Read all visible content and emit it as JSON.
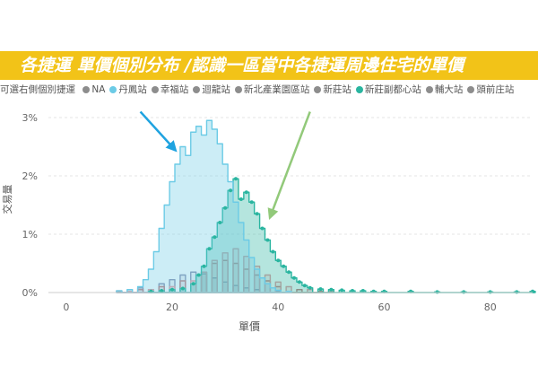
{
  "banner": {
    "title": "各捷運 單價個別分布 /認識一區當中各捷運周邊住宅的單價"
  },
  "legend": {
    "label": "可選右側個別捷運",
    "items": [
      {
        "name": "NA",
        "color": "#8d8d8d"
      },
      {
        "name": "丹鳳站",
        "color": "#6ccbe6"
      },
      {
        "name": "幸福站",
        "color": "#8d8d8d"
      },
      {
        "name": "迴龍站",
        "color": "#8d8d8d"
      },
      {
        "name": "新北產業園區站",
        "color": "#8d8d8d"
      },
      {
        "name": "新莊站",
        "color": "#8d8d8d"
      },
      {
        "name": "新莊副都心站",
        "color": "#2ab5a0"
      },
      {
        "name": "輔大站",
        "color": "#8d8d8d"
      },
      {
        "name": "頭前庄站",
        "color": "#8d8d8d"
      }
    ]
  },
  "chart_data": {
    "type": "area",
    "xlabel": "單價",
    "ylabel": "交易量",
    "xlim": [
      -2,
      88
    ],
    "ylim": [
      0,
      3.2
    ],
    "xticks": [
      0,
      20,
      40,
      60,
      80
    ],
    "yticks": [
      0,
      1,
      2,
      3
    ],
    "ytick_labels": [
      "0%",
      "1%",
      "2%",
      "3%"
    ],
    "grid": true,
    "series": [
      {
        "name": "丹鳳站",
        "color": "#6ccbe6",
        "fill_opacity": 0.35,
        "x": [
          10,
          12,
          14,
          15,
          16,
          17,
          18,
          19,
          20,
          21,
          22,
          23,
          24,
          25,
          26,
          27,
          28,
          29,
          30,
          31,
          32,
          33,
          34,
          35,
          36,
          37,
          38,
          39,
          40,
          42
        ],
        "y": [
          0.03,
          0.05,
          0.1,
          0.22,
          0.4,
          0.7,
          1.1,
          1.5,
          1.9,
          2.2,
          2.5,
          2.35,
          2.75,
          2.85,
          2.7,
          2.95,
          2.8,
          2.55,
          2.2,
          1.9,
          1.55,
          1.2,
          0.9,
          0.6,
          0.4,
          0.25,
          0.15,
          0.08,
          0.04,
          0.02
        ]
      },
      {
        "name": "新莊副都心站",
        "color": "#2ab5a0",
        "fill_opacity": 0.35,
        "x": [
          16,
          18,
          20,
          22,
          24,
          25,
          26,
          27,
          28,
          29,
          30,
          31,
          32,
          33,
          34,
          35,
          36,
          37,
          38,
          39,
          40,
          41,
          42,
          43,
          44,
          45,
          46,
          48,
          50,
          52,
          54,
          56,
          58,
          60,
          65,
          70,
          75,
          80,
          85,
          88
        ],
        "y": [
          0.02,
          0.03,
          0.05,
          0.07,
          0.15,
          0.3,
          0.45,
          0.75,
          0.95,
          1.2,
          1.45,
          1.75,
          1.95,
          1.6,
          1.72,
          1.55,
          1.35,
          1.1,
          0.9,
          0.7,
          0.55,
          0.45,
          0.35,
          0.25,
          0.18,
          0.12,
          0.08,
          0.06,
          0.05,
          0.04,
          0.03,
          0.03,
          0.02,
          0.02,
          0.02,
          0.01,
          0.01,
          0.01,
          0.01,
          0.02
        ]
      },
      {
        "name": "新莊站",
        "color": "#e79aa0",
        "fill_opacity": 0.18,
        "x": [
          12,
          16,
          20,
          24,
          26,
          28,
          30,
          32,
          34,
          36,
          38,
          40,
          42,
          46,
          50
        ],
        "y": [
          0.02,
          0.05,
          0.1,
          0.2,
          0.35,
          0.55,
          0.68,
          0.75,
          0.62,
          0.45,
          0.3,
          0.18,
          0.1,
          0.05,
          0.02
        ]
      },
      {
        "name": "輔大站",
        "color": "#c07a7a",
        "fill_opacity": 0.12,
        "x": [
          10,
          14,
          18,
          22,
          26,
          28,
          30,
          32,
          34,
          36,
          38,
          40,
          44,
          48
        ],
        "y": [
          0.02,
          0.05,
          0.1,
          0.2,
          0.35,
          0.5,
          0.55,
          0.5,
          0.4,
          0.3,
          0.2,
          0.1,
          0.05,
          0.02
        ]
      },
      {
        "name": "迴龍站",
        "color": "#8a8fb0",
        "fill_opacity": 0.12,
        "x": [
          10,
          14,
          18,
          20,
          22,
          24,
          26,
          28,
          30,
          32,
          34,
          36,
          40
        ],
        "y": [
          0.03,
          0.08,
          0.15,
          0.22,
          0.3,
          0.35,
          0.32,
          0.25,
          0.18,
          0.12,
          0.08,
          0.05,
          0.02
        ]
      }
    ],
    "annotations": [
      {
        "type": "arrow",
        "color": "#1fa3e0",
        "from": [
          14,
          3.1
        ],
        "to": [
          20.5,
          2.45
        ]
      },
      {
        "type": "arrow",
        "color": "#92c97a",
        "from": [
          46,
          3.1
        ],
        "to": [
          38.5,
          1.3
        ]
      }
    ]
  }
}
